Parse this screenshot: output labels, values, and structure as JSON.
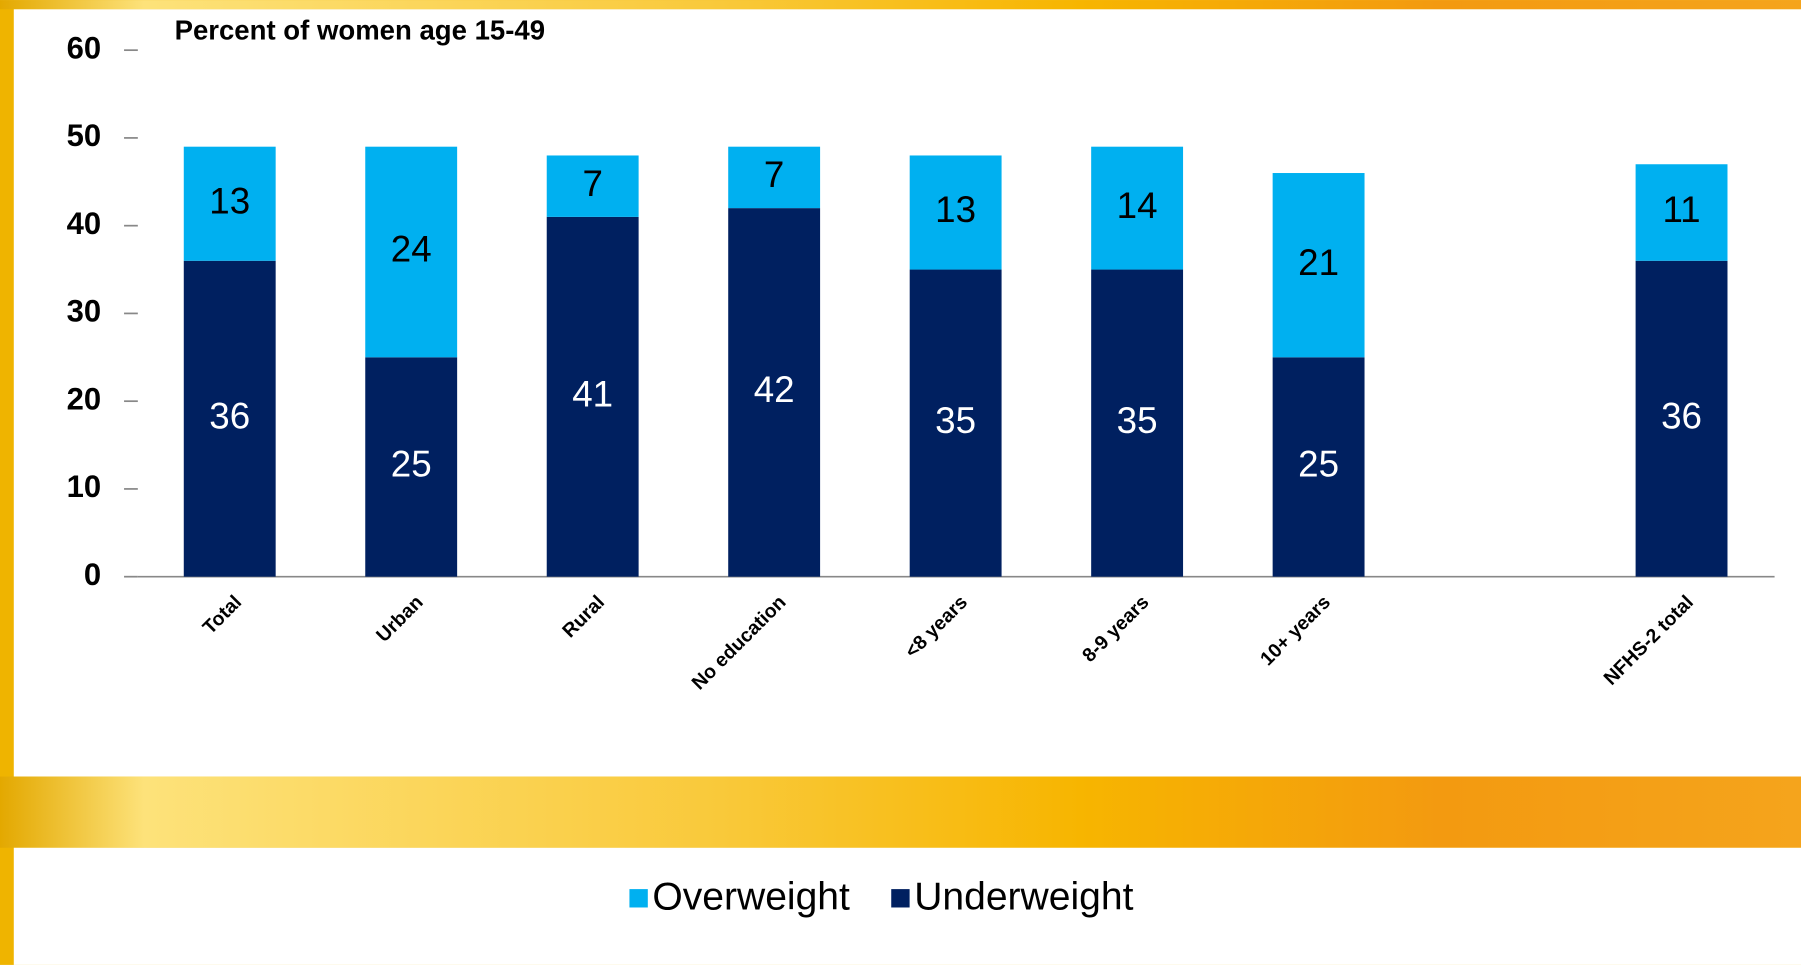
{
  "chart_data": {
    "type": "stacked_bar",
    "title": "Percent of women age 15-49",
    "categories": [
      "Total",
      "Urban",
      "Rural",
      "No education",
      "<8 years",
      "8-9 years",
      "10+ years",
      null,
      "NFHS-2 total"
    ],
    "series": [
      {
        "name": "Overweight",
        "color": "#00b0f0",
        "values": [
          13,
          24,
          7,
          7,
          13,
          14,
          21,
          null,
          11
        ]
      },
      {
        "name": "Underweight",
        "color": "#002060",
        "values": [
          36,
          25,
          41,
          42,
          35,
          35,
          25,
          null,
          36
        ]
      }
    ],
    "ylim": [
      0,
      60
    ],
    "yticks": [
      0,
      10,
      20,
      30,
      40,
      50,
      60
    ],
    "legend": "bottom"
  }
}
